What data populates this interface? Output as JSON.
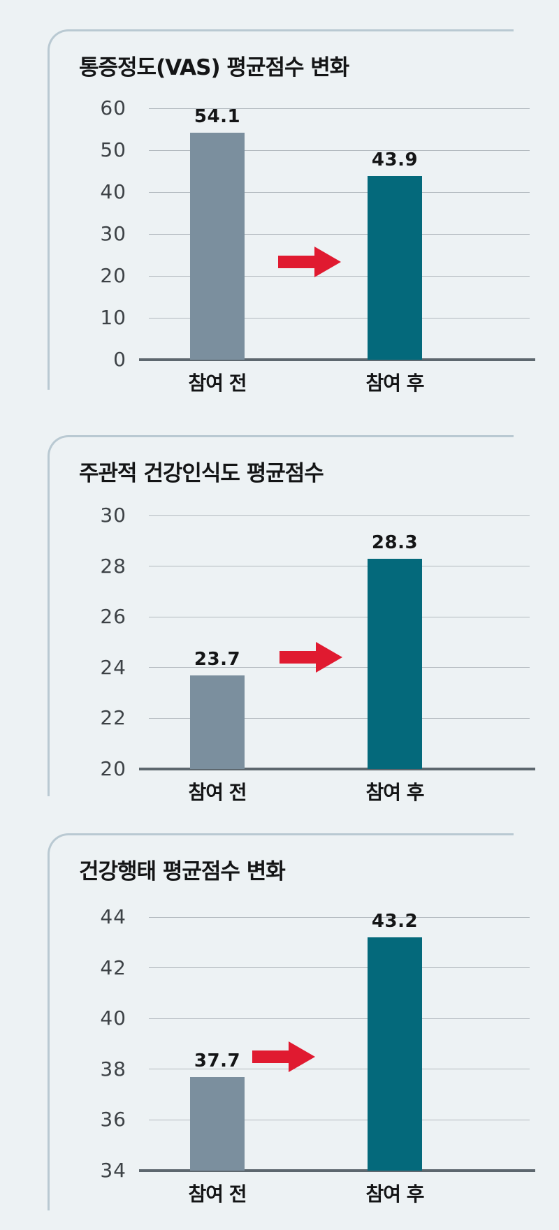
{
  "page": {
    "background": "#edf2f4",
    "panel_border_color": "#b9c9d2"
  },
  "colors": {
    "bar_before": "#7b8f9e",
    "bar_after": "#04697b",
    "arrow_red": "#e01a30",
    "gridline": "#b2b9be",
    "baseline": "#5d676e",
    "tick_text": "#3d4246",
    "label_text": "#141516"
  },
  "chart_data": [
    {
      "type": "bar",
      "title": "통증정도(VAS) 평균점수 변화",
      "categories": [
        "참여 전",
        "참여 후"
      ],
      "values": [
        54.1,
        43.9
      ],
      "value_labels": [
        "54.1",
        "43.9"
      ],
      "ylim": [
        0,
        60
      ],
      "yticks": [
        0,
        10,
        20,
        30,
        40,
        50,
        60
      ],
      "grid": true,
      "legend": false,
      "series_colors": [
        "#7b8f9e",
        "#04697b"
      ],
      "annotation": "red arrow pointing right between bars"
    },
    {
      "type": "bar",
      "title": "주관적 건강인식도 평균점수",
      "categories": [
        "참여 전",
        "참여 후"
      ],
      "values": [
        23.7,
        28.3
      ],
      "value_labels": [
        "23.7",
        "28.3"
      ],
      "ylim": [
        20,
        30
      ],
      "yticks": [
        20,
        22,
        24,
        26,
        28,
        30
      ],
      "grid": true,
      "legend": false,
      "series_colors": [
        "#7b8f9e",
        "#04697b"
      ],
      "annotation": "red arrow pointing right between bars"
    },
    {
      "type": "bar",
      "title": "건강행태 평균점수 변화",
      "categories": [
        "참여 전",
        "참여 후"
      ],
      "values": [
        37.7,
        43.2
      ],
      "value_labels": [
        "37.7",
        "43.2"
      ],
      "ylim": [
        34,
        44
      ],
      "yticks": [
        34,
        36,
        38,
        40,
        42,
        44
      ],
      "grid": true,
      "legend": false,
      "series_colors": [
        "#7b8f9e",
        "#04697b"
      ],
      "annotation": "red arrow pointing right between bars"
    }
  ]
}
